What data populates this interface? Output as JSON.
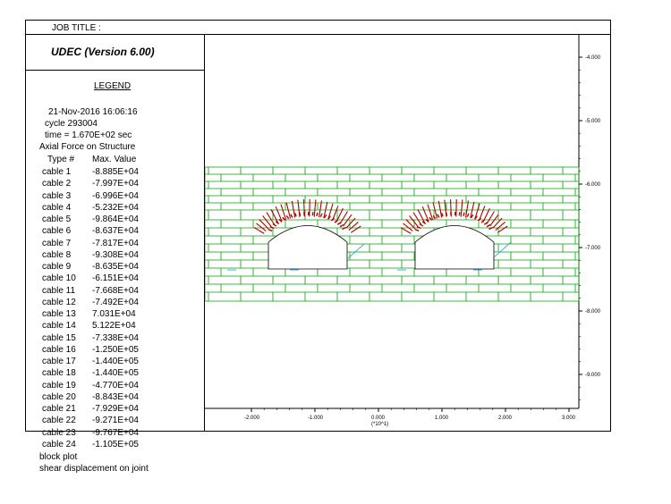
{
  "header": {
    "job_title_label": "JOB TITLE :"
  },
  "app": {
    "title": "UDEC (Version 6.00)"
  },
  "legend": {
    "heading": "LEGEND",
    "date": "21-Nov-2016  16:06:16",
    "cycle": "cycle   293004",
    "time": "time  =  1.670E+02 sec",
    "structure": "Axial Force on Structure",
    "col_type": "Type  #",
    "col_max": "Max. Value",
    "cables": [
      {
        "label": "cable  1",
        "value": "-8.885E+04"
      },
      {
        "label": "cable  2",
        "value": "-7.997E+04"
      },
      {
        "label": "cable  3",
        "value": "-6.996E+04"
      },
      {
        "label": "cable  4",
        "value": "-5.232E+04"
      },
      {
        "label": "cable  5",
        "value": "-9.864E+04"
      },
      {
        "label": "cable  6",
        "value": "-8.637E+04"
      },
      {
        "label": "cable  7",
        "value": "-7.817E+04"
      },
      {
        "label": "cable  8",
        "value": "-9.308E+04"
      },
      {
        "label": "cable  9",
        "value": "-8.635E+04"
      },
      {
        "label": "cable  10",
        "value": "-6.151E+04"
      },
      {
        "label": "cable  11",
        "value": "-7.668E+04"
      },
      {
        "label": "cable  12",
        "value": "-7.492E+04"
      },
      {
        "label": "cable  13",
        "value": " 7.031E+04"
      },
      {
        "label": "cable  14",
        "value": " 5.122E+04"
      },
      {
        "label": "cable  15",
        "value": "-7.338E+04"
      },
      {
        "label": "cable  16",
        "value": "-1.250E+05"
      },
      {
        "label": "cable  17",
        "value": "-1.440E+05"
      },
      {
        "label": "cable  18",
        "value": "-1.440E+05"
      },
      {
        "label": "cable  19",
        "value": "-4.770E+04"
      },
      {
        "label": "cable  20",
        "value": "-8.843E+04"
      },
      {
        "label": "cable  21",
        "value": "-7.929E+04"
      },
      {
        "label": "cable  22",
        "value": "-9.271E+04"
      },
      {
        "label": "cable  23",
        "value": "-9.767E+04"
      },
      {
        "label": "cable  24",
        "value": "-1.105E+05"
      }
    ],
    "block_plot": "block plot",
    "shear": "shear displacement on joint"
  },
  "plot": {
    "exponent_label": "(*10^1)",
    "y_ticks": [
      "-4.000",
      "-5.000",
      "-6.000",
      "-7.000",
      "-8.000",
      "-9.000"
    ],
    "x_ticks": [
      "-2.000",
      "-1.000",
      "0.000",
      "1.000",
      "2.000",
      "3.000"
    ],
    "colors": {
      "blocks": "#00a000",
      "cables": "#b00000",
      "shear": "#00a0e0",
      "frame": "#000000"
    }
  }
}
